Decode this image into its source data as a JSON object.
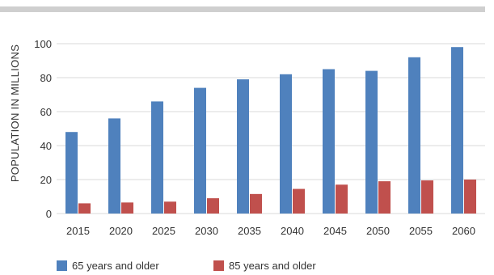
{
  "chart_data": {
    "type": "bar",
    "title": "",
    "xlabel": "",
    "ylabel": "POPULATION IN MILLIONS",
    "categories": [
      "2015",
      "2020",
      "2025",
      "2030",
      "2035",
      "2040",
      "2045",
      "2050",
      "2055",
      "2060"
    ],
    "series": [
      {
        "name": "65 years and older",
        "color": "#4f81bd",
        "values": [
          48,
          56,
          66,
          74,
          79,
          82,
          85,
          84,
          92,
          98
        ]
      },
      {
        "name": "85 years and older",
        "color": "#c0504d",
        "values": [
          6,
          6.5,
          7,
          9,
          11.5,
          14.5,
          17,
          19,
          19.5,
          20
        ]
      }
    ],
    "ylim": [
      0,
      100
    ],
    "yticks": [
      0,
      20,
      40,
      60,
      80,
      100
    ],
    "grid": true,
    "legend_position": "bottom-left"
  }
}
